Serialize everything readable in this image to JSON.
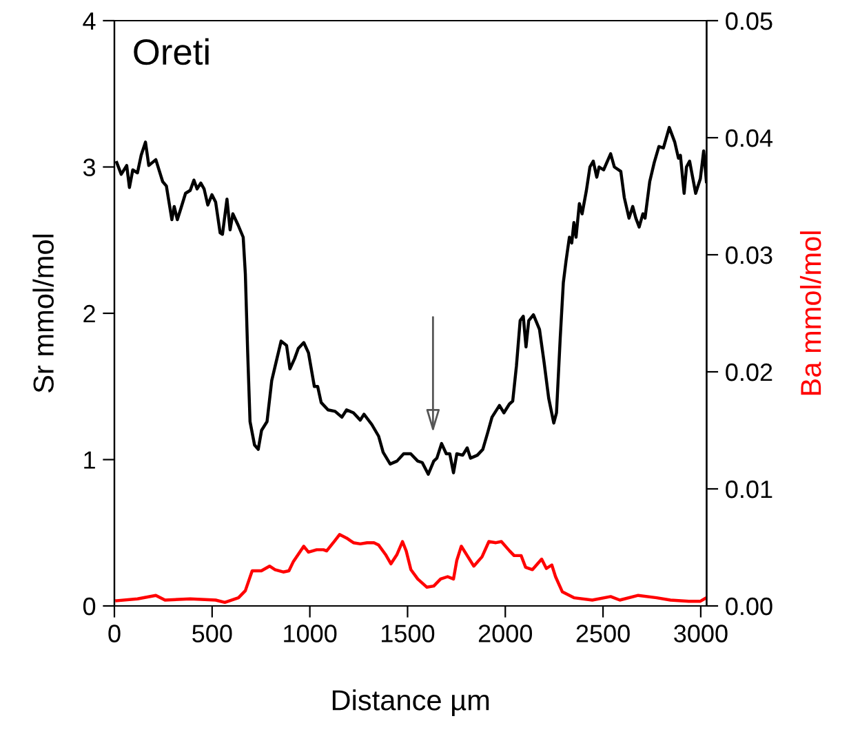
{
  "chart_data": {
    "type": "line",
    "title": "Oreti",
    "xlabel": "Distance µm",
    "ylabel": "Sr mmol/mol",
    "y2label": "Ba mmol/mol",
    "xlim": [
      0,
      3030
    ],
    "xticks": [
      0,
      500,
      1000,
      1500,
      2000,
      2500,
      3000
    ],
    "ylim": [
      0,
      4
    ],
    "yticks": [
      0,
      1,
      2,
      3,
      4
    ],
    "y2lim": [
      0,
      0.05
    ],
    "y2ticks": [
      {
        "value": 0,
        "label": "0.00"
      },
      {
        "value": 0.01,
        "label": "0.01"
      },
      {
        "value": 0.02,
        "label": "0.02"
      },
      {
        "value": 0.03,
        "label": "0.03"
      },
      {
        "value": 0.04,
        "label": "0.04"
      },
      {
        "value": 0.05,
        "label": "0.05"
      }
    ],
    "grid": false,
    "legend": false,
    "marker": "none",
    "line_style": "solid",
    "series": [
      {
        "color": "#000000",
        "x": [
          12,
          35,
          63,
          77,
          94,
          118,
          137,
          159,
          176,
          212,
          247,
          266,
          294,
          306,
          322,
          341,
          364,
          388,
          407,
          423,
          442,
          459,
          478,
          499,
          518,
          541,
          553,
          576,
          592,
          606,
          634,
          659,
          670,
          682,
          694,
          717,
          736,
          753,
          781,
          805,
          828,
          853,
          881,
          898,
          922,
          941,
          969,
          993,
          1023,
          1040,
          1058,
          1093,
          1129,
          1164,
          1188,
          1223,
          1258,
          1277,
          1317,
          1352,
          1375,
          1411,
          1446,
          1480,
          1516,
          1552,
          1575,
          1606,
          1634,
          1650,
          1674,
          1698,
          1716,
          1735,
          1752,
          1782,
          1805,
          1822,
          1857,
          1885,
          1909,
          1932,
          1970,
          1993,
          2021,
          2038,
          2057,
          2076,
          2092,
          2106,
          2120,
          2144,
          2175,
          2198,
          2222,
          2248,
          2262,
          2281,
          2297,
          2311,
          2328,
          2340,
          2351,
          2362,
          2379,
          2393,
          2415,
          2433,
          2450,
          2468,
          2480,
          2503,
          2539,
          2558,
          2591,
          2609,
          2633,
          2652,
          2668,
          2685,
          2704,
          2715,
          2739,
          2762,
          2786,
          2809,
          2839,
          2867,
          2886,
          2896,
          2915,
          2927,
          2943,
          2974,
          2998,
          3015,
          3029
        ],
        "values": [
          3.03,
          2.95,
          3.01,
          2.86,
          2.98,
          2.96,
          3.08,
          3.17,
          3.01,
          3.05,
          2.9,
          2.87,
          2.64,
          2.73,
          2.64,
          2.72,
          2.82,
          2.84,
          2.91,
          2.85,
          2.89,
          2.85,
          2.74,
          2.81,
          2.76,
          2.55,
          2.54,
          2.78,
          2.57,
          2.68,
          2.6,
          2.52,
          2.27,
          1.73,
          1.26,
          1.1,
          1.07,
          1.2,
          1.26,
          1.54,
          1.67,
          1.81,
          1.78,
          1.62,
          1.69,
          1.76,
          1.8,
          1.73,
          1.5,
          1.5,
          1.39,
          1.34,
          1.33,
          1.29,
          1.34,
          1.32,
          1.27,
          1.31,
          1.24,
          1.16,
          1.05,
          0.97,
          0.99,
          1.04,
          1.04,
          0.99,
          0.98,
          0.9,
          0.99,
          1.01,
          1.11,
          1.04,
          1.04,
          0.91,
          1.04,
          1.03,
          1.08,
          1.01,
          1.03,
          1.07,
          1.18,
          1.29,
          1.37,
          1.32,
          1.38,
          1.4,
          1.64,
          1.95,
          1.98,
          1.77,
          1.95,
          1.99,
          1.89,
          1.67,
          1.42,
          1.25,
          1.32,
          1.83,
          2.21,
          2.36,
          2.52,
          2.48,
          2.62,
          2.52,
          2.75,
          2.68,
          2.84,
          3.0,
          3.04,
          2.93,
          3.0,
          2.98,
          3.09,
          3.0,
          2.97,
          2.79,
          2.65,
          2.73,
          2.65,
          2.59,
          2.68,
          2.65,
          2.9,
          3.03,
          3.14,
          3.13,
          3.27,
          3.17,
          3.06,
          3.08,
          2.82,
          3.0,
          3.04,
          2.82,
          2.92,
          3.11,
          2.9
        ]
      },
      {
        "color": "#ff0000",
        "axis": "y2",
        "x": [
          12,
          118,
          212,
          259,
          388,
          518,
          565,
          635,
          670,
          705,
          752,
          794,
          822,
          864,
          893,
          916,
          969,
          993,
          1035,
          1070,
          1086,
          1129,
          1152,
          1188,
          1223,
          1258,
          1293,
          1328,
          1352,
          1387,
          1415,
          1446,
          1474,
          1493,
          1517,
          1552,
          1599,
          1634,
          1669,
          1705,
          1735,
          1752,
          1775,
          1805,
          1839,
          1881,
          1916,
          1952,
          1980,
          2022,
          2045,
          2081,
          2104,
          2139,
          2186,
          2210,
          2238,
          2257,
          2292,
          2351,
          2445,
          2539,
          2586,
          2680,
          2774,
          2845,
          2939,
          2998,
          3029
        ],
        "values": [
          0.00045,
          0.0006,
          0.0009,
          0.0005,
          0.0006,
          0.0005,
          0.0003,
          0.0007,
          0.0013,
          0.003,
          0.003,
          0.0034,
          0.0031,
          0.0029,
          0.003,
          0.0038,
          0.0051,
          0.0046,
          0.0048,
          0.0048,
          0.0047,
          0.0056,
          0.0061,
          0.0058,
          0.0054,
          0.0053,
          0.0054,
          0.0054,
          0.0052,
          0.0044,
          0.0036,
          0.0044,
          0.0055,
          0.0047,
          0.0031,
          0.0023,
          0.0016,
          0.0017,
          0.0023,
          0.0025,
          0.0023,
          0.0039,
          0.0051,
          0.0043,
          0.0034,
          0.0042,
          0.0055,
          0.0054,
          0.0055,
          0.0047,
          0.0043,
          0.0043,
          0.0033,
          0.0031,
          0.004,
          0.0032,
          0.0035,
          0.0025,
          0.0012,
          0.0007,
          0.0005,
          0.0008,
          0.0005,
          0.0009,
          0.0007,
          0.0005,
          0.0004,
          0.0004,
          0.0007
        ]
      }
    ]
  }
}
